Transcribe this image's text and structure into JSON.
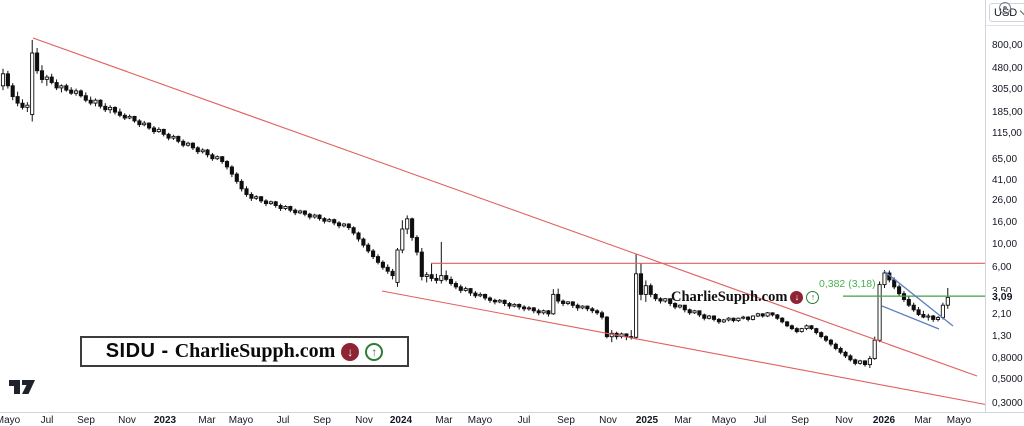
{
  "chart": {
    "currency": "USD",
    "last_price_label": "3,09",
    "fib_label": "0,382 (3,18)",
    "watermark_text": "CharlieSupph.com",
    "symbol_label": "SIDU -",
    "brand_label": "CharlieSupph.com",
    "icons": {
      "down_arrow": "↓",
      "up_arrow": "↑"
    },
    "colors": {
      "trendline_red": "#e25f5f",
      "fib_green": "#43a047",
      "wedge_blue": "#5b7fc2",
      "candle_black": "#0f0f0f",
      "axis_text": "#131722"
    }
  },
  "chart_data": {
    "type": "candlestick",
    "title": "SIDU weekly candlestick chart with descending channel, resistance and fib level",
    "scale": "logarithmic",
    "currency": "USD",
    "grid": false,
    "y_scale": {
      "a": 348.5,
      "b": 45.3
    },
    "x_layout": {
      "start": 3,
      "step": 4.87,
      "body_width": 3.2
    },
    "y_ticks": [
      {
        "label": "800,00",
        "price": 800
      },
      {
        "label": "480,00",
        "price": 480
      },
      {
        "label": "305,00",
        "price": 305
      },
      {
        "label": "185,00",
        "price": 185
      },
      {
        "label": "115,00",
        "price": 115
      },
      {
        "label": "65,00",
        "price": 65
      },
      {
        "label": "41,00",
        "price": 41
      },
      {
        "label": "26,00",
        "price": 26
      },
      {
        "label": "16,00",
        "price": 16
      },
      {
        "label": "10,00",
        "price": 10
      },
      {
        "label": "6,00",
        "price": 6
      },
      {
        "label": "3,50",
        "price": 3.5
      },
      {
        "label": "2,10",
        "price": 2.1
      },
      {
        "label": "1,30",
        "price": 1.3
      },
      {
        "label": "0,8000",
        "price": 0.8
      },
      {
        "label": "0,5000",
        "price": 0.5
      },
      {
        "label": "0,3000",
        "price": 0.3
      }
    ],
    "last_price": 3.09,
    "x_ticks": [
      {
        "label": "Mayo",
        "x": 8
      },
      {
        "label": "Jul",
        "x": 47
      },
      {
        "label": "Sep",
        "x": 86
      },
      {
        "label": "Nov",
        "x": 127
      },
      {
        "label": "2023",
        "x": 165,
        "year": true
      },
      {
        "label": "Mar",
        "x": 207
      },
      {
        "label": "Mayo",
        "x": 241
      },
      {
        "label": "Jul",
        "x": 283
      },
      {
        "label": "Sep",
        "x": 322
      },
      {
        "label": "Nov",
        "x": 364
      },
      {
        "label": "2024",
        "x": 401,
        "year": true
      },
      {
        "label": "Mar",
        "x": 444
      },
      {
        "label": "Mayo",
        "x": 480
      },
      {
        "label": "Jul",
        "x": 524
      },
      {
        "label": "Sep",
        "x": 566
      },
      {
        "label": "Nov",
        "x": 608
      },
      {
        "label": "2025",
        "x": 647,
        "year": true
      },
      {
        "label": "Mar",
        "x": 683
      },
      {
        "label": "Mayo",
        "x": 724
      },
      {
        "label": "Jul",
        "x": 760
      },
      {
        "label": "Sep",
        "x": 800
      },
      {
        "label": "Nov",
        "x": 844
      },
      {
        "label": "2026",
        "x": 884,
        "year": true
      },
      {
        "label": "Mar",
        "x": 923
      },
      {
        "label": "Mayo",
        "x": 959
      }
    ],
    "candles": [
      [
        330,
        480,
        300,
        430
      ],
      [
        430,
        460,
        310,
        330
      ],
      [
        330,
        350,
        240,
        260
      ],
      [
        260,
        290,
        210,
        225
      ],
      [
        225,
        245,
        195,
        205
      ],
      [
        205,
        230,
        185,
        215
      ],
      [
        175,
        910,
        150,
        680
      ],
      [
        680,
        760,
        430,
        460
      ],
      [
        460,
        520,
        350,
        380
      ],
      [
        380,
        420,
        330,
        400
      ],
      [
        400,
        430,
        340,
        355
      ],
      [
        355,
        380,
        300,
        315
      ],
      [
        315,
        340,
        285,
        330
      ],
      [
        330,
        345,
        290,
        300
      ],
      [
        300,
        320,
        270,
        280
      ],
      [
        280,
        310,
        265,
        295
      ],
      [
        295,
        305,
        255,
        265
      ],
      [
        265,
        285,
        230,
        240
      ],
      [
        240,
        260,
        215,
        225
      ],
      [
        225,
        250,
        210,
        240
      ],
      [
        240,
        245,
        200,
        210
      ],
      [
        210,
        225,
        185,
        195
      ],
      [
        195,
        215,
        180,
        205
      ],
      [
        205,
        210,
        175,
        185
      ],
      [
        185,
        200,
        165,
        172
      ],
      [
        172,
        180,
        155,
        162
      ],
      [
        162,
        175,
        158,
        168
      ],
      [
        168,
        170,
        146,
        152
      ],
      [
        152,
        158,
        133,
        140
      ],
      [
        140,
        152,
        135,
        145
      ],
      [
        145,
        147,
        125,
        130
      ],
      [
        130,
        136,
        114,
        120
      ],
      [
        120,
        132,
        117,
        126
      ],
      [
        126,
        128,
        108,
        113
      ],
      [
        113,
        117,
        99,
        104
      ],
      [
        104,
        112,
        100,
        108
      ],
      [
        108,
        110,
        93,
        97
      ],
      [
        97,
        101,
        85,
        89
      ],
      [
        89,
        96,
        86,
        93
      ],
      [
        93,
        95,
        80,
        84
      ],
      [
        84,
        87,
        73,
        77
      ],
      [
        77,
        83,
        74,
        80
      ],
      [
        80,
        82,
        68,
        72
      ],
      [
        72,
        75,
        63,
        66
      ],
      [
        66,
        71,
        64,
        69
      ],
      [
        69,
        70,
        59,
        62
      ],
      [
        62,
        64,
        52,
        55
      ],
      [
        55,
        57,
        44,
        47
      ],
      [
        47,
        49,
        38,
        40
      ],
      [
        40,
        42,
        32,
        34
      ],
      [
        34,
        36,
        28.5,
        30
      ],
      [
        30,
        31.5,
        26,
        27.5
      ],
      [
        27.5,
        29.5,
        26.5,
        28.5
      ],
      [
        28.5,
        29,
        24.8,
        26
      ],
      [
        26,
        27,
        23.2,
        24.5
      ],
      [
        24.5,
        26.2,
        23.8,
        25.5
      ],
      [
        25.5,
        26,
        22.4,
        23.5
      ],
      [
        23.5,
        24.5,
        20.8,
        22
      ],
      [
        22,
        23.6,
        21.2,
        23
      ],
      [
        23,
        23.4,
        20.2,
        21.2
      ],
      [
        21.2,
        22,
        19,
        20
      ],
      [
        20,
        21.4,
        19.4,
        20.8
      ],
      [
        20.8,
        21.2,
        18.5,
        19.4
      ],
      [
        19.4,
        20,
        17.3,
        18.2
      ],
      [
        18.2,
        19.6,
        17.6,
        19
      ],
      [
        19,
        19.4,
        16.8,
        17.6
      ],
      [
        17.6,
        18.2,
        15.8,
        16.6
      ],
      [
        16.6,
        17.8,
        16.2,
        17.2
      ],
      [
        17.2,
        17.6,
        15.2,
        16
      ],
      [
        16,
        16.6,
        14.2,
        15
      ],
      [
        15,
        16,
        14.5,
        15.6
      ],
      [
        15.6,
        15.9,
        13.7,
        14.4
      ],
      [
        14.4,
        14.8,
        12.2,
        12.8
      ],
      [
        12.8,
        13.2,
        10.6,
        11.2
      ],
      [
        11.2,
        11.6,
        9.3,
        9.8
      ],
      [
        9.8,
        10.3,
        8.2,
        8.6
      ],
      [
        8.6,
        9,
        7.2,
        7.6
      ],
      [
        7.6,
        8,
        6.4,
        6.7
      ],
      [
        6.7,
        7,
        5.7,
        6
      ],
      [
        6,
        6.4,
        5.2,
        5.5
      ],
      [
        5.5,
        5.8,
        4.6,
        5
      ],
      [
        4.3,
        9.2,
        3.9,
        8.8
      ],
      [
        8.8,
        17,
        8.2,
        14
      ],
      [
        14,
        18.9,
        12.5,
        17.5
      ],
      [
        17.5,
        18,
        10.8,
        11.6
      ],
      [
        11.6,
        12.2,
        7.8,
        8.4
      ],
      [
        8.4,
        9.2,
        4.5,
        4.9
      ],
      [
        4.9,
        5.4,
        4.3,
        5.1
      ],
      [
        5.1,
        6.6,
        4.4,
        4.7
      ],
      [
        4.7,
        5.2,
        4.2,
        4.5
      ],
      [
        4.5,
        10.5,
        4.2,
        5
      ],
      [
        5,
        5.6,
        4.4,
        4.6
      ],
      [
        4.6,
        4.9,
        4,
        4.2
      ],
      [
        4.2,
        4.4,
        3.7,
        3.9
      ],
      [
        3.9,
        4.1,
        3.4,
        3.6
      ],
      [
        3.6,
        3.9,
        3.5,
        3.75
      ],
      [
        3.75,
        3.8,
        3.2,
        3.4
      ],
      [
        3.4,
        3.55,
        3.05,
        3.2
      ],
      [
        3.2,
        3.45,
        3.1,
        3.3
      ],
      [
        3.3,
        3.35,
        2.9,
        3.05
      ],
      [
        3.05,
        3.15,
        2.75,
        2.9
      ],
      [
        2.9,
        3,
        2.65,
        2.8
      ],
      [
        2.8,
        2.98,
        2.72,
        2.9
      ],
      [
        2.9,
        2.95,
        2.55,
        2.7
      ],
      [
        2.7,
        2.8,
        2.4,
        2.55
      ],
      [
        2.55,
        2.72,
        2.48,
        2.65
      ],
      [
        2.65,
        2.7,
        2.36,
        2.5
      ],
      [
        2.5,
        2.6,
        2.28,
        2.4
      ],
      [
        2.4,
        2.55,
        2.3,
        2.45
      ],
      [
        2.45,
        2.5,
        2.18,
        2.3
      ],
      [
        2.3,
        2.4,
        2.08,
        2.2
      ],
      [
        2.2,
        2.36,
        2.12,
        2.3
      ],
      [
        2.3,
        2.34,
        2.02,
        2.15
      ],
      [
        2.15,
        3.7,
        2.1,
        3.3
      ],
      [
        3.3,
        3.75,
        2.7,
        2.85
      ],
      [
        2.85,
        2.95,
        2.55,
        2.7
      ],
      [
        2.7,
        2.85,
        2.6,
        2.8
      ],
      [
        2.8,
        2.84,
        2.45,
        2.6
      ],
      [
        2.6,
        2.7,
        2.3,
        2.45
      ],
      [
        2.45,
        2.6,
        2.38,
        2.55
      ],
      [
        2.55,
        2.58,
        2.28,
        2.4
      ],
      [
        2.4,
        2.5,
        2.18,
        2.3
      ],
      [
        2.3,
        2.38,
        2.1,
        2.2
      ],
      [
        2.2,
        2.3,
        1.9,
        2
      ],
      [
        2,
        2.05,
        1.25,
        1.3
      ],
      [
        1.3,
        1.5,
        1.15,
        1.4
      ],
      [
        1.4,
        1.45,
        1.22,
        1.3
      ],
      [
        1.3,
        1.42,
        1.25,
        1.38
      ],
      [
        1.38,
        1.4,
        1.2,
        1.3
      ],
      [
        1.3,
        1.5,
        1.22,
        1.28
      ],
      [
        1.28,
        8,
        1.22,
        5.2
      ],
      [
        5.2,
        6.6,
        2.9,
        3.3
      ],
      [
        3.3,
        4.5,
        2.8,
        4
      ],
      [
        4,
        4.2,
        3.1,
        3.3
      ],
      [
        3.3,
        3.4,
        2.85,
        3
      ],
      [
        3,
        3.1,
        2.7,
        2.85
      ],
      [
        2.85,
        3.05,
        2.75,
        3
      ],
      [
        3,
        3.02,
        2.55,
        2.7
      ],
      [
        2.7,
        2.78,
        2.38,
        2.5
      ],
      [
        2.5,
        2.65,
        2.42,
        2.6
      ],
      [
        2.6,
        2.62,
        2.22,
        2.35
      ],
      [
        2.35,
        2.42,
        2.1,
        2.2
      ],
      [
        2.2,
        2.35,
        2.14,
        2.3
      ],
      [
        2.3,
        2.32,
        2,
        2.1
      ],
      [
        2.1,
        2.16,
        1.86,
        1.95
      ],
      [
        1.95,
        2.1,
        1.9,
        2.05
      ],
      [
        2.05,
        2.08,
        1.82,
        1.9
      ],
      [
        1.9,
        1.96,
        1.72,
        1.8
      ],
      [
        1.8,
        1.92,
        1.76,
        1.88
      ],
      [
        1.88,
        2,
        1.82,
        1.95
      ],
      [
        1.95,
        1.98,
        1.78,
        1.85
      ],
      [
        1.85,
        1.98,
        1.8,
        1.95
      ],
      [
        1.95,
        2.06,
        1.9,
        2
      ],
      [
        2,
        2.04,
        1.82,
        1.9
      ],
      [
        1.9,
        2.08,
        1.86,
        2.05
      ],
      [
        2.05,
        2.2,
        2,
        2.15
      ],
      [
        2.15,
        2.18,
        1.98,
        2.05
      ],
      [
        2.05,
        2.24,
        2,
        2.2
      ],
      [
        2.2,
        2.22,
        2.02,
        2.1
      ],
      [
        2.1,
        2.14,
        1.88,
        1.95
      ],
      [
        1.95,
        2,
        1.74,
        1.8
      ],
      [
        1.8,
        1.84,
        1.6,
        1.65
      ],
      [
        1.65,
        1.7,
        1.5,
        1.55
      ],
      [
        1.55,
        1.6,
        1.4,
        1.45
      ],
      [
        1.45,
        1.58,
        1.42,
        1.55
      ],
      [
        1.55,
        1.7,
        1.5,
        1.65
      ],
      [
        1.65,
        1.68,
        1.5,
        1.55
      ],
      [
        1.55,
        1.58,
        1.36,
        1.42
      ],
      [
        1.42,
        1.46,
        1.25,
        1.3
      ],
      [
        1.3,
        1.34,
        1.15,
        1.2
      ],
      [
        1.2,
        1.24,
        1.05,
        1.1
      ],
      [
        1.1,
        1.14,
        0.96,
        1
      ],
      [
        1,
        1.04,
        0.88,
        0.92
      ],
      [
        0.92,
        0.95,
        0.81,
        0.85
      ],
      [
        0.85,
        0.88,
        0.75,
        0.78
      ],
      [
        0.78,
        0.8,
        0.69,
        0.72
      ],
      [
        0.72,
        0.78,
        0.7,
        0.76
      ],
      [
        0.76,
        0.77,
        0.67,
        0.7
      ],
      [
        0.7,
        0.85,
        0.65,
        0.8
      ],
      [
        0.8,
        1.3,
        0.78,
        1.2
      ],
      [
        1.2,
        4.4,
        1.15,
        4.1
      ],
      [
        4.1,
        5.66,
        3.8,
        5.3
      ],
      [
        5.3,
        5.6,
        4.3,
        4.55
      ],
      [
        4.55,
        4.8,
        3.7,
        3.9
      ],
      [
        3.9,
        4.1,
        3.2,
        3.35
      ],
      [
        3.35,
        3.55,
        2.8,
        2.95
      ],
      [
        2.95,
        3.15,
        2.5,
        2.6
      ],
      [
        2.6,
        2.75,
        2.25,
        2.35
      ],
      [
        2.35,
        2.5,
        2.05,
        2.12
      ],
      [
        2.12,
        2.3,
        1.95,
        2
      ],
      [
        2,
        2.15,
        1.85,
        2.05
      ],
      [
        2.05,
        2.1,
        1.8,
        1.9
      ],
      [
        1.9,
        2.05,
        1.82,
        1.98
      ],
      [
        1.98,
        2.75,
        1.9,
        2.6
      ],
      [
        2.6,
        3.8,
        2.4,
        3.09
      ]
    ],
    "annotations": [
      {
        "name": "upper-descending-trendline",
        "kind": "segment",
        "color": "red",
        "x1": 33,
        "y1": 38,
        "x2": 977,
        "y2": 376
      },
      {
        "name": "lower-descending-channel-line",
        "kind": "segment",
        "color": "red",
        "x1": 382,
        "y1": 291,
        "x2": 999,
        "y2": 407
      },
      {
        "name": "horizontal-resistance-line",
        "kind": "hline",
        "color": "red",
        "price": 6.55,
        "x1": 431,
        "x2": 986
      },
      {
        "name": "fib-0382-level-line",
        "kind": "hline",
        "color": "green",
        "price": 3.18,
        "x1": 843,
        "x2": 986
      },
      {
        "name": "wedge-upper-line",
        "kind": "segment",
        "color": "blue",
        "x1": 884,
        "y1": 271,
        "x2": 953,
        "y2": 326
      },
      {
        "name": "wedge-lower-line",
        "kind": "segment",
        "color": "blue",
        "x1": 882,
        "y1": 306,
        "x2": 939,
        "y2": 329
      }
    ],
    "legend_position": "none",
    "x_axis_label": "",
    "y_axis_label": "USD"
  }
}
